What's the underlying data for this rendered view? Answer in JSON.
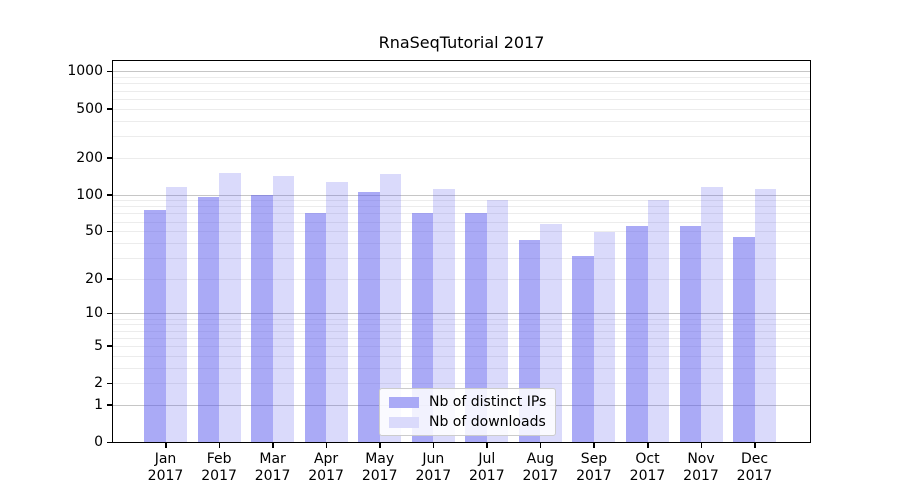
{
  "chart_data": {
    "type": "bar",
    "title": "RnaSeqTutorial 2017",
    "categories": [
      "Jan",
      "Feb",
      "Mar",
      "Apr",
      "May",
      "Jun",
      "Jul",
      "Aug",
      "Sep",
      "Oct",
      "Nov",
      "Dec"
    ],
    "year_label": "2017",
    "series": [
      {
        "name": "Nb of distinct IPs",
        "color": "rgba(86,86,238,0.5)",
        "legend_color": "#aaaaf6",
        "values": [
          74,
          96,
          100,
          70,
          104,
          70,
          70,
          42,
          31,
          55,
          55,
          45
        ]
      },
      {
        "name": "Nb of downloads",
        "color": "rgba(86,86,238,0.22)",
        "legend_color": "#dadafb",
        "values": [
          116,
          151,
          142,
          126,
          148,
          111,
          91,
          57,
          49,
          91,
          115,
          111
        ]
      }
    ],
    "yscale": "log1p",
    "yticks": [
      0,
      1,
      2,
      5,
      10,
      20,
      50,
      100,
      200,
      500,
      1000
    ],
    "ylim": [
      0,
      1216
    ],
    "grid": true,
    "legend_position": "lower center",
    "colors": {
      "major_grid": "#c6c6c6",
      "minor_grid": "#ececec",
      "axis": "#000000"
    }
  }
}
